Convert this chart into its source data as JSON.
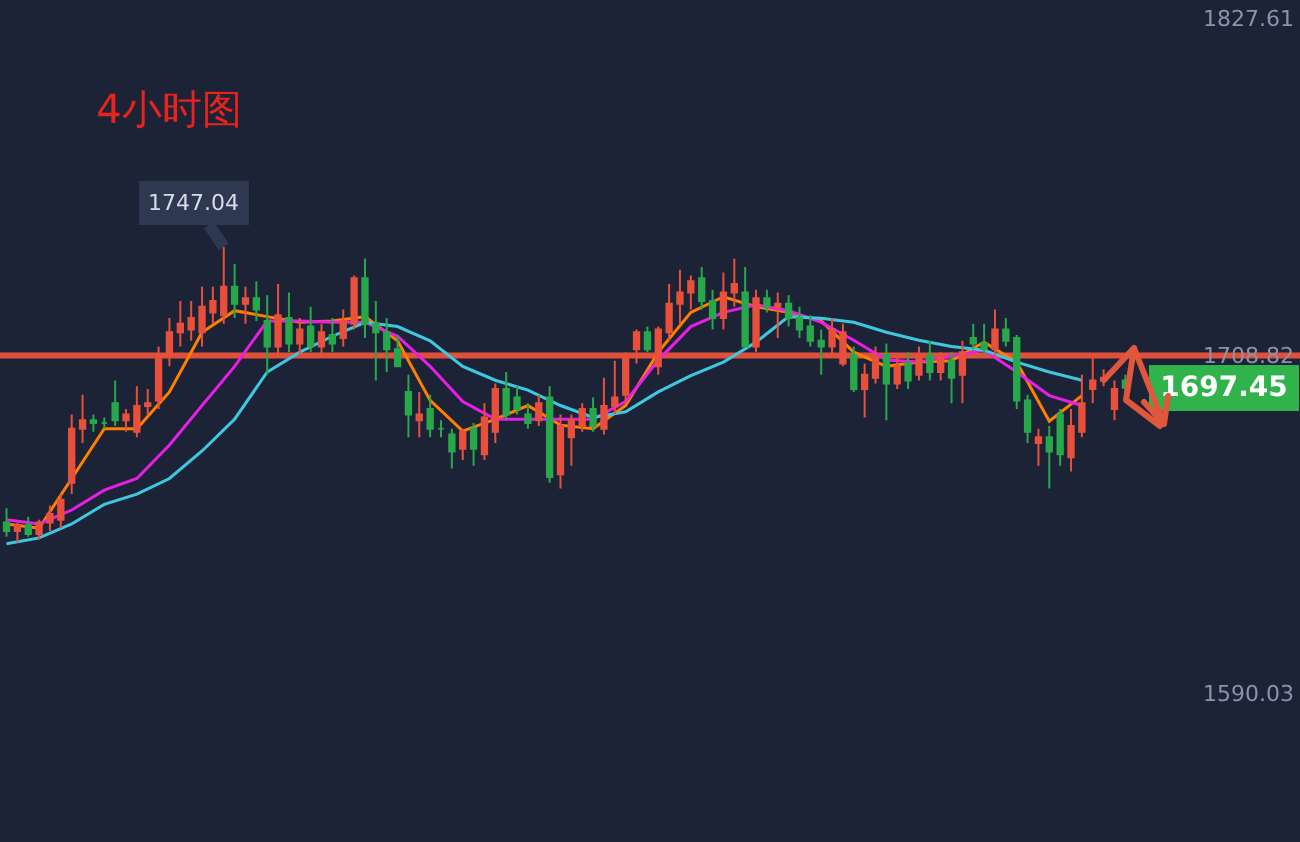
{
  "chart_data": {
    "type": "candlestick",
    "title": "4小时图",
    "categories": [
      null,
      null,
      null,
      null,
      null,
      null,
      null,
      null,
      null,
      null,
      null,
      null,
      null,
      null,
      null,
      null,
      null,
      null,
      null,
      null,
      null,
      null,
      null,
      null,
      null,
      null,
      null,
      null,
      null,
      null,
      null,
      null,
      null,
      null,
      null,
      null,
      null,
      null,
      null,
      null,
      null,
      null,
      null,
      null,
      null,
      null,
      null,
      null,
      null,
      null,
      null,
      null,
      null,
      null,
      null,
      null,
      null,
      null,
      null,
      null,
      null,
      null,
      null,
      null,
      null,
      null,
      null,
      null,
      null,
      null,
      null,
      null,
      null,
      null,
      null,
      null,
      null,
      null,
      null,
      null,
      null,
      null,
      null,
      null,
      null,
      null,
      null,
      null,
      null,
      null,
      null,
      null,
      null,
      null,
      null,
      null,
      null,
      null,
      null,
      null,
      null,
      null,
      null,
      null
    ],
    "ohlc": [
      [
        1650,
        1655,
        1645,
        1647
      ],
      [
        1647,
        1650,
        1643,
        1649
      ],
      [
        1649,
        1652,
        1645,
        1646
      ],
      [
        1646,
        1651,
        1644,
        1650
      ],
      [
        1650,
        1656,
        1647,
        1653
      ],
      [
        1651,
        1660,
        1648,
        1658
      ],
      [
        1664,
        1688,
        1660,
        1683
      ],
      [
        1683,
        1695,
        1678,
        1686
      ],
      [
        1686,
        1688,
        1682,
        1685
      ],
      [
        1685,
        1687,
        1683,
        1685
      ],
      [
        1692,
        1700,
        1684,
        1686
      ],
      [
        1686,
        1690,
        1682,
        1688
      ],
      [
        1682,
        1698,
        1680,
        1691
      ],
      [
        1691,
        1697,
        1688,
        1692
      ],
      [
        1693,
        1712,
        1690,
        1709
      ],
      [
        1709,
        1722,
        1705,
        1717
      ],
      [
        1717,
        1728,
        1712,
        1720
      ],
      [
        1718,
        1728,
        1714,
        1722
      ],
      [
        1717,
        1733,
        1712,
        1726
      ],
      [
        1724,
        1733,
        1720,
        1728
      ],
      [
        1723,
        1747.04,
        1720,
        1733
      ],
      [
        1733,
        1741,
        1722,
        1727
      ],
      [
        1727,
        1733,
        1720,
        1729
      ],
      [
        1729,
        1735,
        1721,
        1725
      ],
      [
        1721,
        1730,
        1702,
        1712
      ],
      [
        1712,
        1734,
        1708,
        1723
      ],
      [
        1722,
        1731,
        1710,
        1713
      ],
      [
        1713,
        1722,
        1709,
        1718
      ],
      [
        1719,
        1726,
        1710,
        1712
      ],
      [
        1712,
        1720,
        1708,
        1717
      ],
      [
        1716,
        1722,
        1710,
        1713
      ],
      [
        1715,
        1725,
        1712,
        1721
      ],
      [
        1720,
        1737,
        1718,
        1736
      ],
      [
        1736,
        1743,
        1715,
        1720
      ],
      [
        1720,
        1728,
        1700,
        1717
      ],
      [
        1717,
        1722,
        1703,
        1711
      ],
      [
        1711,
        1716,
        1705,
        1705
      ],
      [
        1696,
        1702,
        1680,
        1688
      ],
      [
        1686,
        1696,
        1680,
        1688
      ],
      [
        1690,
        1695,
        1680,
        1683
      ],
      [
        1683,
        1686,
        1680,
        1683
      ],
      [
        1681,
        1683,
        1669,
        1675
      ],
      [
        1676,
        1683,
        1672,
        1682
      ],
      [
        1683,
        1685,
        1670,
        1676
      ],
      [
        1674,
        1692,
        1672,
        1687
      ],
      [
        1682,
        1699,
        1678,
        1697
      ],
      [
        1697,
        1703,
        1686,
        1688
      ],
      [
        1694,
        1698,
        1688,
        1690
      ],
      [
        1688,
        1692,
        1683,
        1685
      ],
      [
        1686,
        1695,
        1684,
        1692
      ],
      [
        1694,
        1698,
        1664,
        1666
      ],
      [
        1667,
        1688,
        1662,
        1684
      ],
      [
        1680,
        1688,
        1670,
        1686
      ],
      [
        1684,
        1692,
        1682,
        1690
      ],
      [
        1690,
        1694,
        1682,
        1684
      ],
      [
        1683,
        1701,
        1681,
        1691
      ],
      [
        1691,
        1707,
        1688,
        1694
      ],
      [
        1695,
        1710,
        1692,
        1709
      ],
      [
        1711,
        1718,
        1706,
        1717
      ],
      [
        1717,
        1719,
        1710,
        1711
      ],
      [
        1705,
        1719,
        1702,
        1718
      ],
      [
        1717,
        1734,
        1714,
        1727
      ],
      [
        1727,
        1739,
        1720,
        1731
      ],
      [
        1731,
        1737,
        1725,
        1735
      ],
      [
        1736,
        1740,
        1725,
        1728
      ],
      [
        1728,
        1732,
        1718,
        1722
      ],
      [
        1722,
        1738,
        1718,
        1731
      ],
      [
        1731,
        1743,
        1726,
        1734
      ],
      [
        1731,
        1740,
        1712,
        1712
      ],
      [
        1712,
        1732,
        1710,
        1729
      ],
      [
        1729,
        1732,
        1724,
        1726
      ],
      [
        1726,
        1731,
        1715,
        1727
      ],
      [
        1727,
        1730,
        1719,
        1722
      ],
      [
        1722,
        1726,
        1715,
        1718
      ],
      [
        1719,
        1723,
        1712,
        1714
      ],
      [
        1714,
        1718,
        1702,
        1712
      ],
      [
        1712,
        1722,
        1709,
        1718
      ],
      [
        1706,
        1720,
        1705,
        1717
      ],
      [
        1709,
        1712,
        1696,
        1697
      ],
      [
        1697,
        1706,
        1687,
        1702
      ],
      [
        1701,
        1712,
        1699,
        1708
      ],
      [
        1709,
        1713,
        1686,
        1699
      ],
      [
        1699,
        1708,
        1697,
        1705
      ],
      [
        1706,
        1710,
        1697,
        1700
      ],
      [
        1702,
        1712,
        1700,
        1708
      ],
      [
        1709,
        1714,
        1700,
        1703
      ],
      [
        1703,
        1710,
        1700,
        1708
      ],
      [
        1707,
        1710,
        1692,
        1701
      ],
      [
        1702,
        1714,
        1692,
        1710
      ],
      [
        1715,
        1720,
        1711,
        1713
      ],
      [
        1713,
        1720,
        1709,
        1711
      ],
      [
        1711,
        1725,
        1708,
        1718
      ],
      [
        1718,
        1722,
        1712,
        1714
      ],
      [
        1715,
        1716,
        1690,
        1693
      ],
      [
        1693,
        1695,
        1678,
        1682
      ],
      [
        1678,
        1683,
        1670,
        1680
      ],
      [
        1680,
        1684,
        1662,
        1675
      ],
      [
        1688,
        1690,
        1670,
        1674
      ],
      [
        1673,
        1690,
        1668,
        1684
      ],
      [
        1682,
        1702,
        1680,
        1692
      ],
      [
        1697,
        1708,
        1692,
        1700
      ],
      [
        1700,
        1704,
        1698,
        1701
      ],
      [
        1690,
        1700,
        1686,
        1697
      ],
      [
        1700,
        1702,
        1696,
        1697.45
      ]
    ],
    "series": [
      {
        "type": "line",
        "color": "#ff7f00",
        "values": [
          1649.5,
          null,
          null,
          1648,
          null,
          null,
          1665.5,
          null,
          null,
          1683,
          null,
          null,
          1683,
          null,
          null,
          1696,
          null,
          null,
          1717,
          null,
          null,
          1724.6,
          null,
          null,
          1722.5,
          null,
          null,
          1720.5,
          null,
          null,
          1721,
          null,
          null,
          1722.5,
          null,
          null,
          1714,
          null,
          null,
          1693,
          null,
          null,
          1682.2,
          null,
          null,
          1686.4,
          null,
          null,
          1691.2,
          null,
          null,
          1684.3,
          null,
          null,
          1683,
          null,
          null,
          1691.2,
          null,
          null,
          1710,
          null,
          null,
          1724,
          null,
          null,
          1729.5,
          null,
          null,
          1726,
          null,
          null,
          1724,
          null,
          null,
          1721,
          null,
          null,
          1710,
          null,
          null,
          1705,
          null,
          null,
          1706.5,
          null,
          null,
          1707,
          null,
          null,
          1713.5,
          null,
          null,
          1706.5,
          null,
          null,
          1685.7,
          null,
          null,
          1694.7,
          null,
          null,
          null,
          null
        ]
      },
      {
        "type": "line",
        "color": "#e61ee6",
        "values": [
          1651,
          null,
          null,
          1649.5,
          null,
          null,
          1654.4,
          null,
          null,
          1661.4,
          null,
          null,
          1665.5,
          null,
          null,
          1677.3,
          null,
          null,
          1691.2,
          null,
          null,
          1705,
          null,
          null,
          1721,
          null,
          null,
          1721,
          null,
          null,
          1720.5,
          null,
          null,
          1720.5,
          null,
          null,
          1715.6,
          null,
          null,
          1705,
          null,
          null,
          1692.6,
          null,
          null,
          1686.4,
          null,
          null,
          1686.4,
          null,
          null,
          1686.4,
          null,
          null,
          1686.4,
          null,
          null,
          1692.6,
          null,
          null,
          1707.2,
          null,
          null,
          1719,
          null,
          null,
          1724,
          null,
          null,
          1726.7,
          null,
          null,
          1724.6,
          null,
          null,
          1720.5,
          null,
          null,
          1714.2,
          null,
          null,
          1707.2,
          null,
          null,
          1706.5,
          null,
          null,
          1708.6,
          null,
          null,
          1710.7,
          null,
          null,
          1703,
          null,
          null,
          1694.7,
          null,
          null,
          1691.2,
          null,
          null,
          null,
          null
        ]
      },
      {
        "type": "line",
        "color": "#3ec8e0",
        "values": [
          1642.5,
          null,
          null,
          1644.6,
          null,
          null,
          1649.5,
          null,
          null,
          1656.4,
          null,
          null,
          1660,
          null,
          null,
          1665.5,
          null,
          null,
          1675.2,
          null,
          null,
          1686.4,
          null,
          null,
          1703,
          null,
          null,
          1710,
          null,
          null,
          1715.6,
          null,
          null,
          1720.5,
          null,
          null,
          1719,
          null,
          null,
          1714,
          null,
          null,
          1705,
          null,
          null,
          1700.1,
          null,
          null,
          1696.6,
          null,
          null,
          1691.2,
          null,
          null,
          1687,
          null,
          null,
          1689,
          null,
          null,
          1696,
          null,
          null,
          1701.7,
          null,
          null,
          1706.5,
          null,
          null,
          1713.5,
          null,
          null,
          1722.5,
          null,
          null,
          1721.9,
          null,
          null,
          1720.5,
          null,
          null,
          1717,
          null,
          null,
          1714.2,
          null,
          null,
          1712,
          null,
          null,
          1710.7,
          null,
          null,
          1706.5,
          null,
          null,
          1703,
          null,
          null,
          1700.1,
          null,
          null,
          null,
          null
        ]
      }
    ],
    "ylim": [
      1537.5,
      1834
    ],
    "yticks": [
      1827.61,
      1708.82,
      1590.03
    ],
    "tick_labels": "y",
    "ref_lines": [
      {
        "axis": "y",
        "value": 1708.82,
        "color": "#e0503a"
      }
    ],
    "annotations": [
      "1747.04",
      "1697.45"
    ]
  }
}
